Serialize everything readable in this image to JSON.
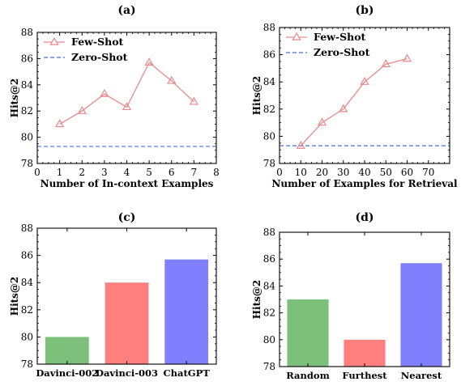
{
  "colors": {
    "few_shot": "#e98a8a",
    "zero_shot": "#4a72d8",
    "bar_green": "#7cc07c",
    "bar_red": "#ff7f7f",
    "bar_blue": "#8080ff"
  },
  "chart_data": [
    {
      "type": "line",
      "title": "(a)",
      "xlabel": "Number of In-context Examples",
      "ylabel": "Hits@2",
      "xlim": [
        0,
        8
      ],
      "ylim": [
        78,
        88
      ],
      "xticks": [
        0,
        1,
        2,
        3,
        4,
        5,
        6,
        7,
        8
      ],
      "yticks": [
        78,
        80,
        82,
        84,
        86,
        88
      ],
      "legend": "top-left",
      "series": [
        {
          "name": "Few-Shot",
          "style": "solid-triangle",
          "x": [
            1,
            2,
            3,
            4,
            5,
            6,
            7
          ],
          "y": [
            81.0,
            82.0,
            83.3,
            82.3,
            85.7,
            84.3,
            82.7
          ]
        },
        {
          "name": "Zero-Shot",
          "style": "dashed",
          "y_constant": 79.3
        }
      ]
    },
    {
      "type": "line",
      "title": "(b)",
      "xlabel": "Number of Examples for Retrieval",
      "ylabel": "Hits@2",
      "xlim": [
        0,
        80
      ],
      "ylim": [
        78,
        88
      ],
      "xticks": [
        0,
        10,
        20,
        30,
        40,
        50,
        60,
        70
      ],
      "yticks": [
        78,
        80,
        82,
        84,
        86,
        88
      ],
      "legend": "top-left",
      "series": [
        {
          "name": "Few-Shot",
          "style": "solid-triangle",
          "x": [
            10,
            20,
            30,
            40,
            50,
            60
          ],
          "y": [
            79.3,
            81.0,
            82.0,
            84.0,
            85.3,
            85.7
          ]
        },
        {
          "name": "Zero-Shot",
          "style": "dashed",
          "y_constant": 79.3
        }
      ]
    },
    {
      "type": "bar",
      "title": "(c)",
      "xlabel": "",
      "ylabel": "Hits@2",
      "ylim": [
        78,
        88
      ],
      "yticks": [
        78,
        80,
        82,
        84,
        86,
        88
      ],
      "categories": [
        "Davinci-002",
        "Davinci-003",
        "ChatGPT"
      ],
      "values": [
        80.0,
        84.0,
        85.7
      ],
      "bar_colors": [
        "bar_green",
        "bar_red",
        "bar_blue"
      ]
    },
    {
      "type": "bar",
      "title": "(d)",
      "xlabel": "",
      "ylabel": "Hits@2",
      "ylim": [
        78,
        88
      ],
      "yticks": [
        78,
        80,
        82,
        84,
        86,
        88
      ],
      "categories": [
        "Random",
        "Furthest",
        "Nearest"
      ],
      "values": [
        83.0,
        80.0,
        85.7
      ],
      "bar_colors": [
        "bar_green",
        "bar_red",
        "bar_blue"
      ]
    }
  ]
}
